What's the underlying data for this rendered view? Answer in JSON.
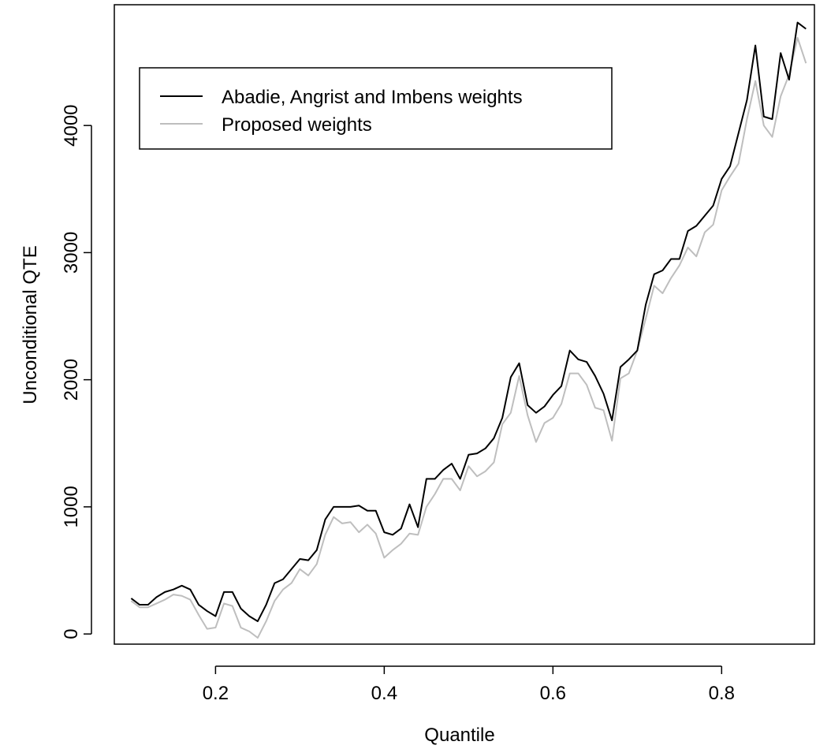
{
  "chart_data": {
    "type": "line",
    "title": "",
    "xlabel": "Quantile",
    "ylabel": "Unconditional QTE",
    "xlim": [
      0.08,
      0.91
    ],
    "ylim": [
      -80,
      4950
    ],
    "xticks": [
      0.2,
      0.4,
      0.6,
      0.8
    ],
    "xtick_labels": [
      "0.2",
      "0.4",
      "0.6",
      "0.8"
    ],
    "yticks": [
      0,
      1000,
      2000,
      3000,
      4000
    ],
    "ytick_labels": [
      "0",
      "1000",
      "2000",
      "3000",
      "4000"
    ],
    "grid": false,
    "legend": {
      "position": "top-left"
    },
    "x": [
      0.1,
      0.11,
      0.12,
      0.13,
      0.14,
      0.15,
      0.16,
      0.17,
      0.18,
      0.19,
      0.2,
      0.21,
      0.22,
      0.23,
      0.24,
      0.25,
      0.26,
      0.27,
      0.28,
      0.29,
      0.3,
      0.31,
      0.32,
      0.33,
      0.34,
      0.35,
      0.36,
      0.37,
      0.38,
      0.39,
      0.4,
      0.41,
      0.42,
      0.43,
      0.44,
      0.45,
      0.46,
      0.47,
      0.48,
      0.49,
      0.5,
      0.51,
      0.52,
      0.53,
      0.54,
      0.55,
      0.56,
      0.57,
      0.58,
      0.59,
      0.6,
      0.61,
      0.62,
      0.63,
      0.64,
      0.65,
      0.66,
      0.67,
      0.68,
      0.69,
      0.7,
      0.71,
      0.72,
      0.73,
      0.74,
      0.75,
      0.76,
      0.77,
      0.78,
      0.79,
      0.8,
      0.81,
      0.82,
      0.83,
      0.84,
      0.85,
      0.86,
      0.87,
      0.88,
      0.89,
      0.9
    ],
    "series": [
      {
        "name": "Abadie, Angrist and Imbens weights",
        "color": "#000000",
        "values": [
          280,
          230,
          230,
          290,
          330,
          350,
          380,
          350,
          230,
          180,
          140,
          330,
          330,
          200,
          140,
          100,
          230,
          400,
          430,
          510,
          590,
          580,
          660,
          900,
          1000,
          1000,
          1000,
          1010,
          970,
          970,
          800,
          780,
          830,
          1020,
          840,
          1220,
          1220,
          1290,
          1340,
          1220,
          1410,
          1420,
          1460,
          1540,
          1700,
          2020,
          2130,
          1800,
          1740,
          1790,
          1880,
          1950,
          2230,
          2160,
          2140,
          2030,
          1890,
          1680,
          2100,
          2160,
          2230,
          2590,
          2830,
          2860,
          2950,
          2950,
          3170,
          3210,
          3290,
          3370,
          3580,
          3680,
          3940,
          4200,
          4630,
          4070,
          4050,
          4570,
          4360,
          4810,
          4760
        ]
      },
      {
        "name": "Proposed weights",
        "color": "#bebebe",
        "values": [
          260,
          210,
          210,
          240,
          270,
          310,
          300,
          270,
          150,
          40,
          50,
          240,
          220,
          50,
          20,
          -30,
          100,
          260,
          350,
          400,
          510,
          460,
          550,
          780,
          920,
          870,
          880,
          800,
          860,
          790,
          600,
          660,
          710,
          790,
          780,
          1000,
          1100,
          1220,
          1220,
          1130,
          1320,
          1240,
          1280,
          1350,
          1650,
          1740,
          2030,
          1720,
          1510,
          1660,
          1700,
          1810,
          2050,
          2050,
          1960,
          1780,
          1760,
          1520,
          2010,
          2050,
          2230,
          2480,
          2740,
          2680,
          2800,
          2900,
          3040,
          2970,
          3160,
          3220,
          3490,
          3600,
          3700,
          4050,
          4350,
          4000,
          3910,
          4230,
          4400,
          4690,
          4490
        ]
      }
    ]
  }
}
